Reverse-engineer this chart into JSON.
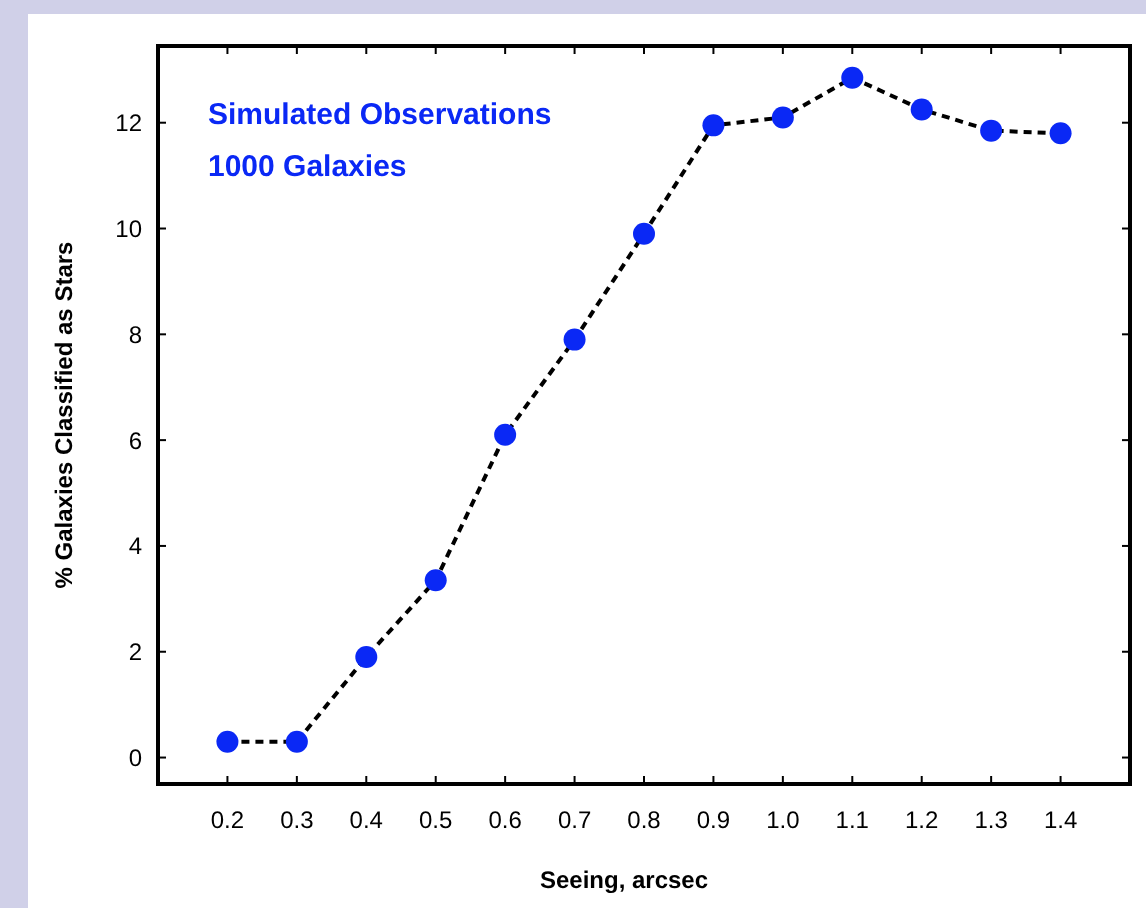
{
  "chart_data": {
    "type": "line",
    "xlabel": "Seeing, arcsec",
    "ylabel": "% Galaxies Classified as Stars",
    "annotations": [
      "Simulated Observations",
      "1000 Galaxies"
    ],
    "x": [
      0.2,
      0.3,
      0.4,
      0.5,
      0.6,
      0.7,
      0.8,
      0.9,
      1.0,
      1.1,
      1.2,
      1.3,
      1.4
    ],
    "series": [
      {
        "color": "#0a28f5",
        "values": [
          0.3,
          0.3,
          1.9,
          3.35,
          6.1,
          7.9,
          9.9,
          11.95,
          12.1,
          12.85,
          12.25,
          11.85,
          11.8
        ]
      }
    ],
    "xlim": [
      0.1,
      1.5
    ],
    "ylim": [
      -0.5,
      13.45
    ],
    "xticks": [
      {
        "value": 0.2,
        "label": "0.2"
      },
      {
        "value": 0.3,
        "label": "0.3"
      },
      {
        "value": 0.4,
        "label": "0.4"
      },
      {
        "value": 0.5,
        "label": "0.5"
      },
      {
        "value": 0.6,
        "label": "0.6"
      },
      {
        "value": 0.7,
        "label": "0.7"
      },
      {
        "value": 0.8,
        "label": "0.8"
      },
      {
        "value": 0.9,
        "label": "0.9"
      },
      {
        "value": 1.0,
        "label": "1.0"
      },
      {
        "value": 1.1,
        "label": "1.1"
      },
      {
        "value": 1.2,
        "label": "1.2"
      },
      {
        "value": 1.3,
        "label": "1.3"
      },
      {
        "value": 1.4,
        "label": "1.4"
      }
    ],
    "yticks": [
      0,
      2,
      4,
      6,
      8,
      10,
      12
    ],
    "marker": "circle",
    "line_style": "dashed"
  }
}
